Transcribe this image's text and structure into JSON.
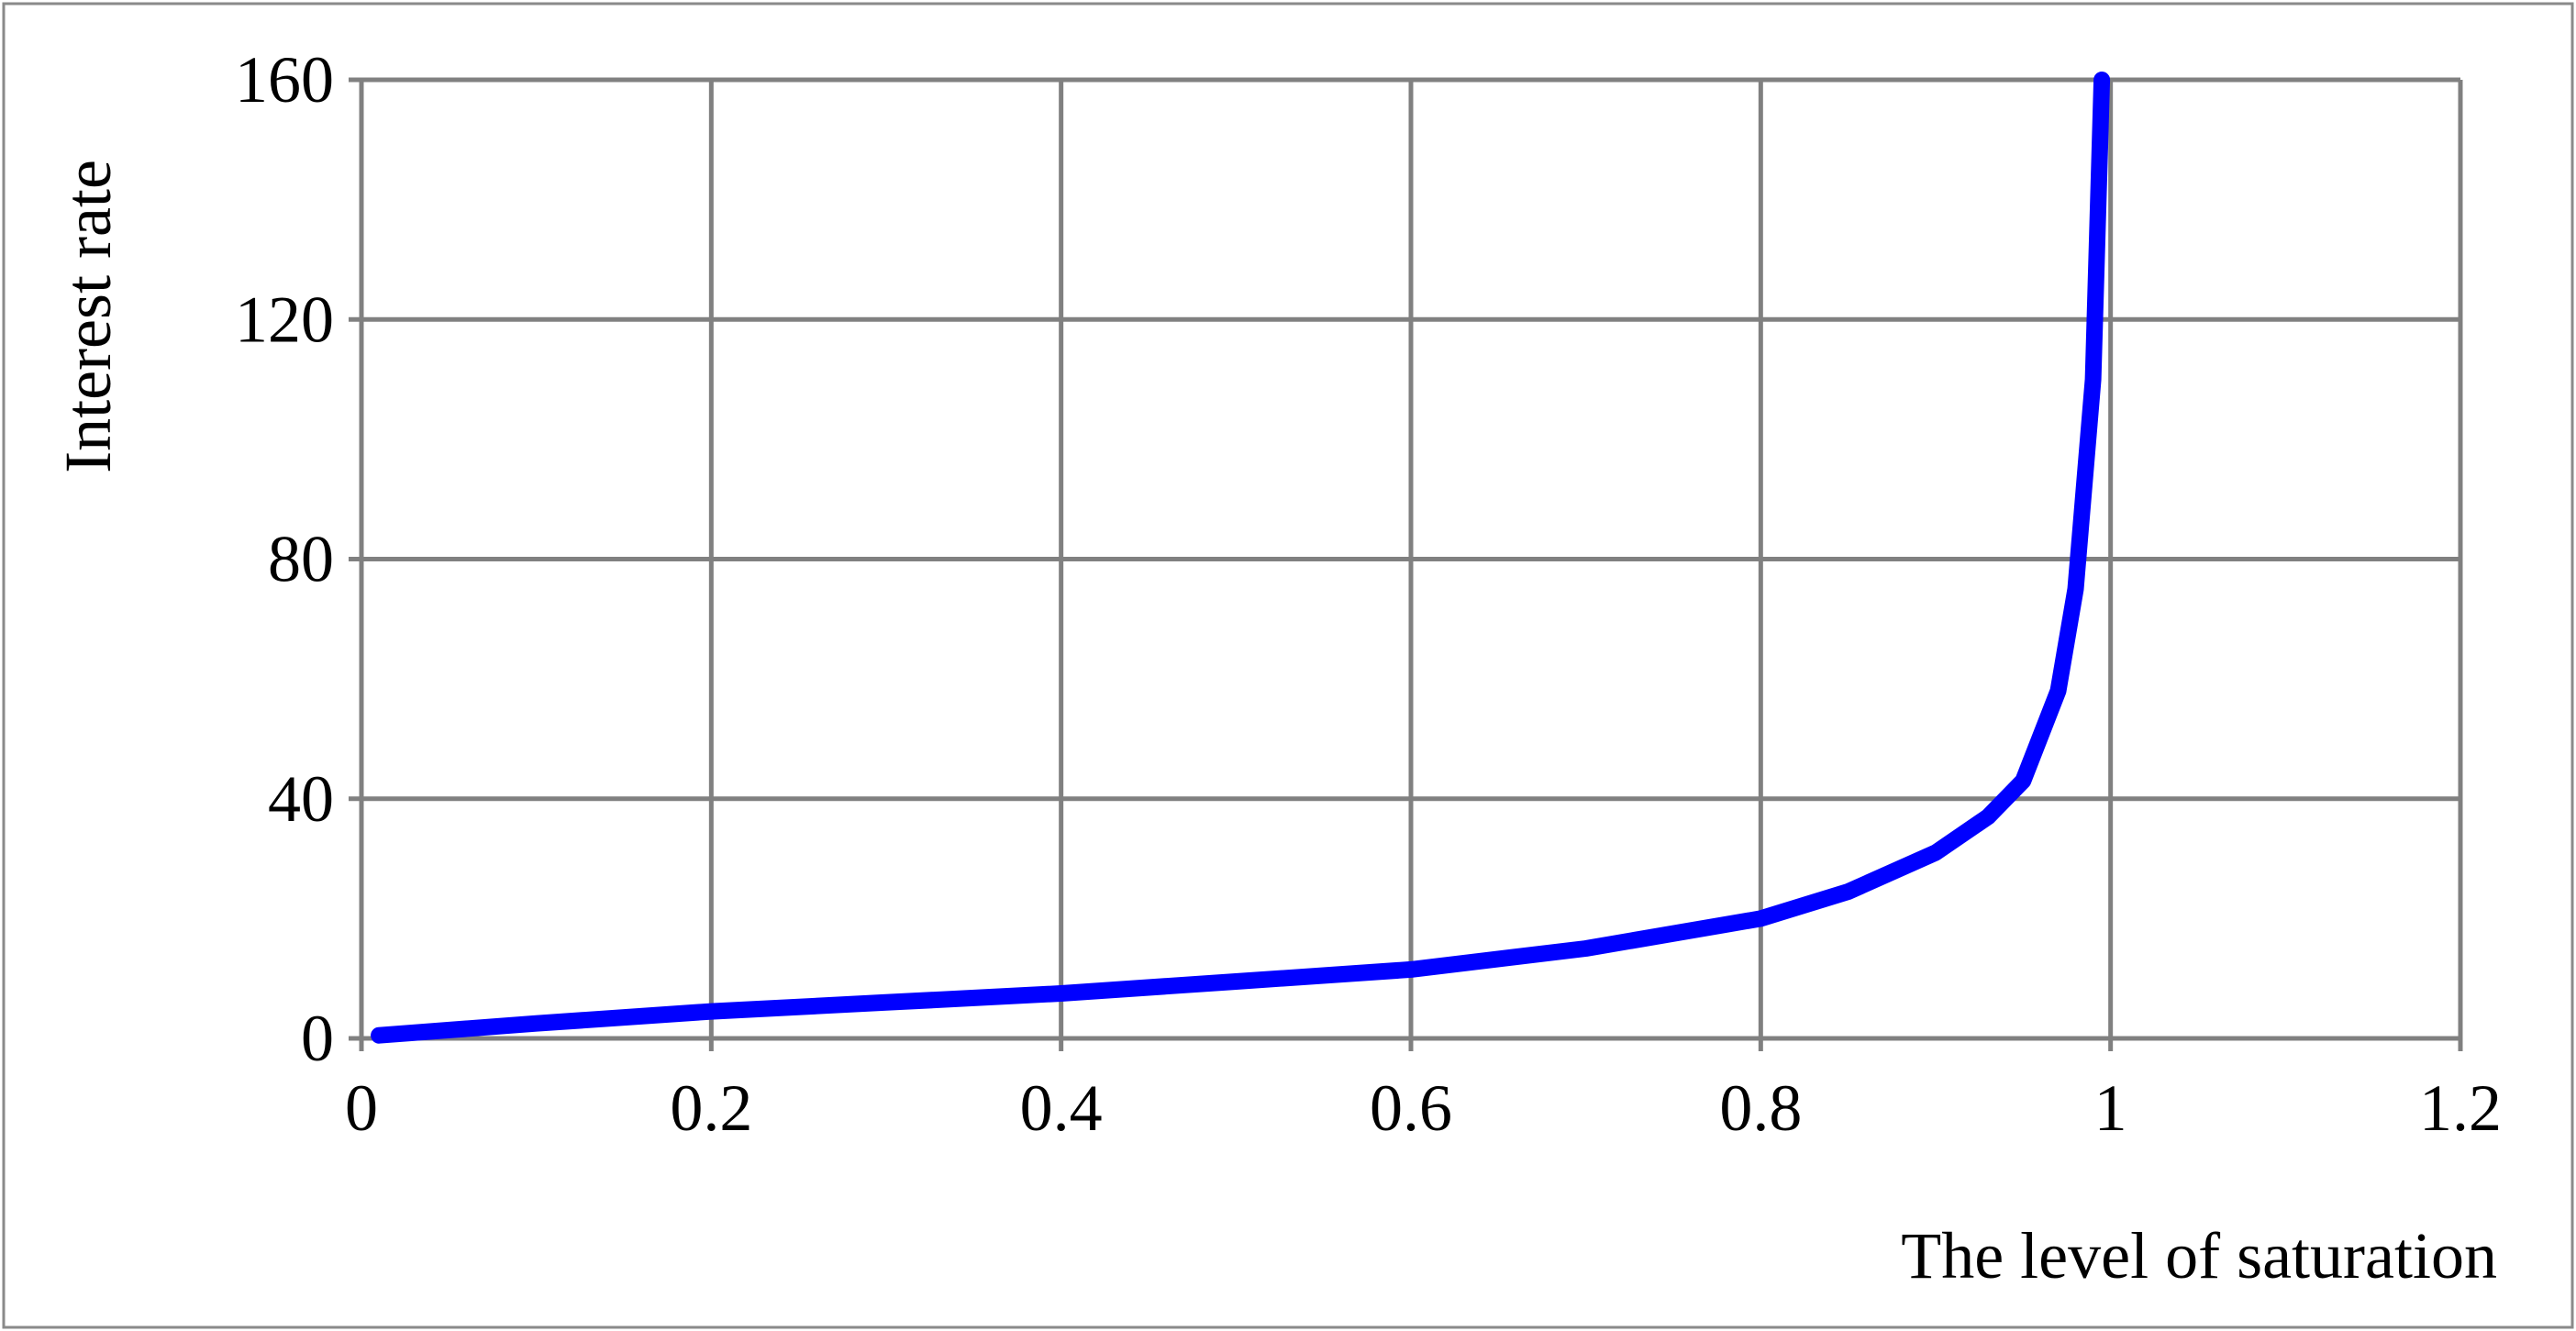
{
  "chart_data": {
    "type": "line",
    "title": "",
    "xlabel": "The level of saturation",
    "ylabel": "Interest rate",
    "xlim": [
      0,
      1.2
    ],
    "ylim": [
      0,
      160
    ],
    "x_ticks": [
      "0",
      "0.2",
      "0.4",
      "0.6",
      "0.8",
      "1",
      "1.2"
    ],
    "y_ticks": [
      "0",
      "40",
      "80",
      "120",
      "160"
    ],
    "grid": true,
    "legend": "none",
    "series": [
      {
        "color": "#0000ff",
        "x": [
          0.01,
          0.1,
          0.2,
          0.3,
          0.4,
          0.5,
          0.6,
          0.7,
          0.8,
          0.85,
          0.9,
          0.93,
          0.95,
          0.97,
          0.98,
          0.99,
          0.995
        ],
        "y": [
          0.5,
          2.5,
          4.5,
          6.0,
          7.5,
          9.5,
          11.5,
          15.0,
          20.0,
          24.5,
          31.0,
          37.0,
          43.0,
          58.0,
          75.0,
          110.0,
          160.0
        ]
      }
    ]
  },
  "colors": {
    "grid": "#808080",
    "frame": "#8a8a8a",
    "line": "#0000ff"
  }
}
